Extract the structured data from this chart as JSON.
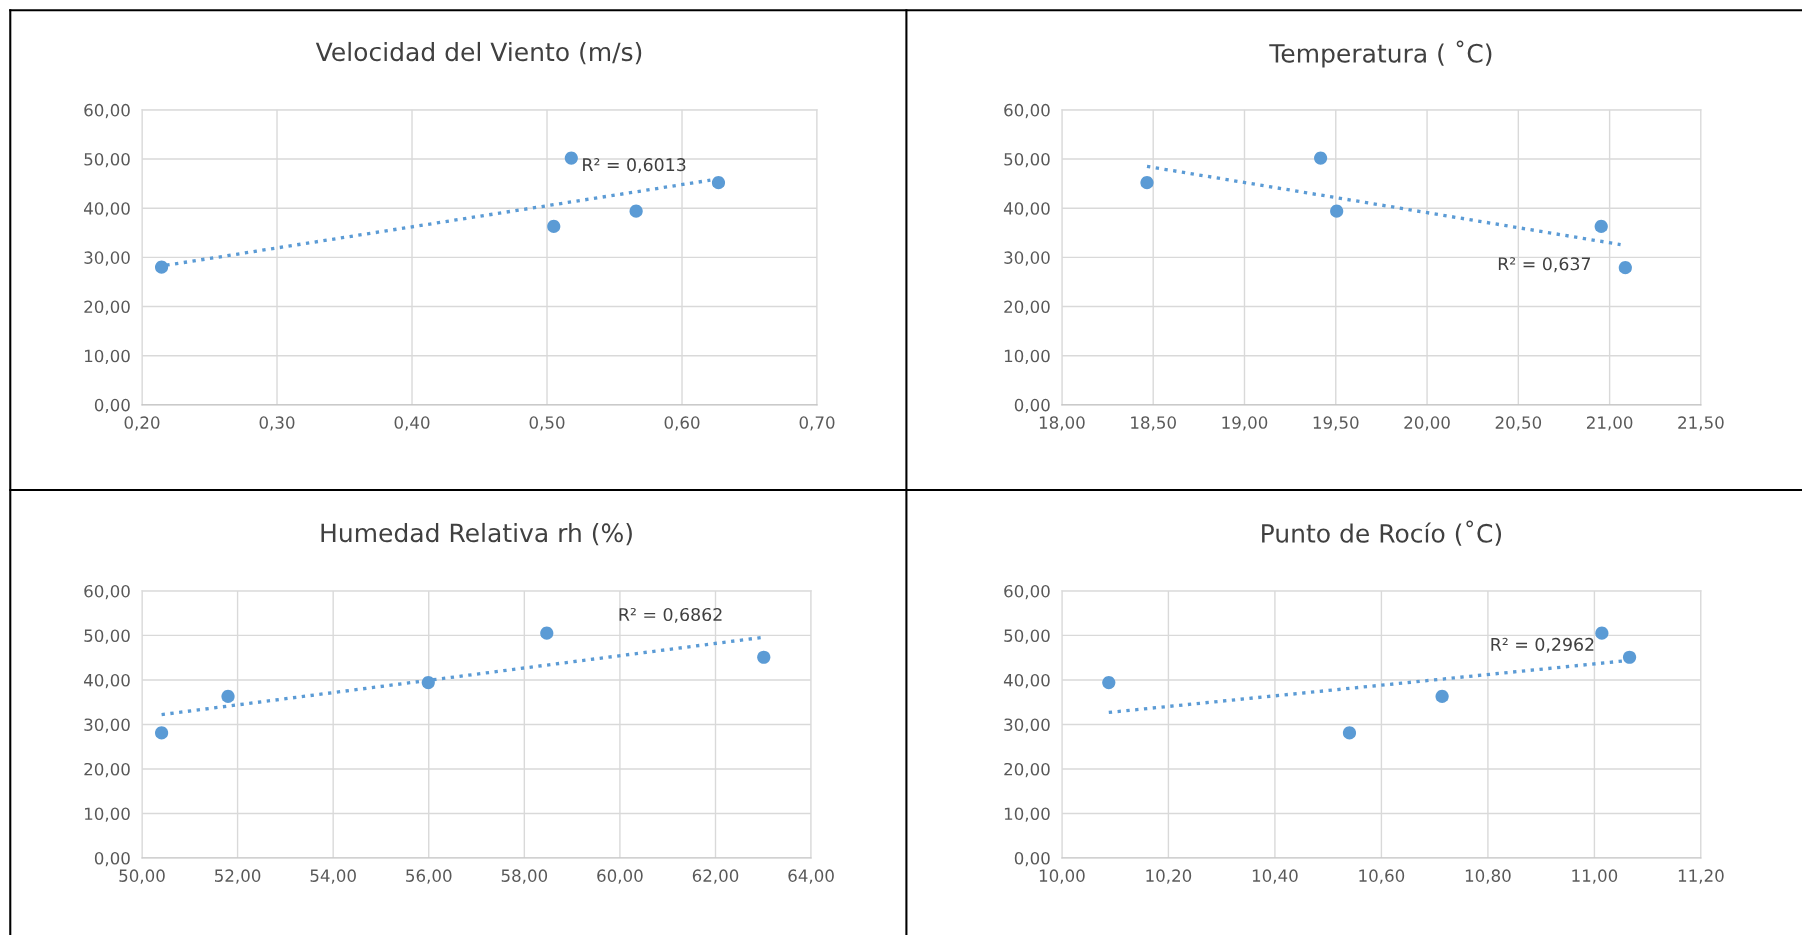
{
  "chart_data": [
    {
      "type": "scatter",
      "title": "Velocidad del Viento (m/s)",
      "grid": true,
      "marker": "circle",
      "xlim": [
        0.2,
        0.7
      ],
      "xticks": [
        {
          "value": 0.2,
          "label": "0,20"
        },
        {
          "value": 0.3,
          "label": "0,30"
        },
        {
          "value": 0.4,
          "label": "0,40"
        },
        {
          "value": 0.5,
          "label": "0,50"
        },
        {
          "value": 0.6,
          "label": "0,60"
        },
        {
          "value": 0.7,
          "label": "0,70"
        }
      ],
      "ylim": [
        0,
        60
      ],
      "yticks": [
        {
          "value": 0,
          "label": "0,00"
        },
        {
          "value": 10,
          "label": "10,00"
        },
        {
          "value": 20,
          "label": "20,00"
        },
        {
          "value": 30,
          "label": "30,00"
        },
        {
          "value": 40,
          "label": "40,00"
        },
        {
          "value": 50,
          "label": "50,00"
        },
        {
          "value": 60,
          "label": "60,00"
        }
      ],
      "series": [
        {
          "color": "#5b9bd5",
          "x": [
            0.2145,
            0.518,
            0.505,
            0.566,
            0.627
          ],
          "values": [
            28.0,
            50.2,
            36.3,
            39.4,
            45.2
          ]
        },
        {
          "type": "line",
          "line_style": "dotted",
          "marker": "none",
          "color": "#5b9bd5",
          "x": [
            0.218,
            0.621
          ],
          "values": [
            28.4,
            45.7
          ]
        }
      ],
      "annotations": [
        "R² = 0,6013"
      ]
    },
    {
      "type": "scatter",
      "title": "Temperatura ( ˚C)",
      "grid": true,
      "marker": "circle",
      "xlim": [
        18.0,
        21.5
      ],
      "xticks": [
        {
          "value": 18.0,
          "label": "18,00"
        },
        {
          "value": 18.5,
          "label": "18,50"
        },
        {
          "value": 19.0,
          "label": "19,00"
        },
        {
          "value": 19.5,
          "label": "19,50"
        },
        {
          "value": 20.0,
          "label": "20,00"
        },
        {
          "value": 20.5,
          "label": "20,50"
        },
        {
          "value": 21.0,
          "label": "21,00"
        },
        {
          "value": 21.5,
          "label": "21,50"
        }
      ],
      "ylim": [
        0,
        60
      ],
      "yticks": [
        {
          "value": 0,
          "label": "0,00"
        },
        {
          "value": 10,
          "label": "10,00"
        },
        {
          "value": 20,
          "label": "20,00"
        },
        {
          "value": 30,
          "label": "30,00"
        },
        {
          "value": 40,
          "label": "40,00"
        },
        {
          "value": 50,
          "label": "50,00"
        },
        {
          "value": 60,
          "label": "60,00"
        }
      ],
      "series": [
        {
          "color": "#5b9bd5",
          "x": [
            18.466,
            19.417,
            19.505,
            20.954,
            21.086
          ],
          "values": [
            45.2,
            50.2,
            39.4,
            36.3,
            27.9
          ]
        },
        {
          "type": "line",
          "line_style": "dotted",
          "marker": "none",
          "color": "#5b9bd5",
          "x": [
            18.466,
            21.06
          ],
          "values": [
            48.5,
            32.6
          ]
        }
      ],
      "annotations": [
        "R² = 0,637"
      ]
    },
    {
      "type": "scatter",
      "title": "Humedad Relativa rh (%)",
      "grid": true,
      "marker": "circle",
      "xlim": [
        50,
        64
      ],
      "xticks": [
        {
          "value": 50,
          "label": "50,00"
        },
        {
          "value": 52,
          "label": "52,00"
        },
        {
          "value": 54,
          "label": "54,00"
        },
        {
          "value": 56,
          "label": "56,00"
        },
        {
          "value": 58,
          "label": "58,00"
        },
        {
          "value": 60,
          "label": "60,00"
        },
        {
          "value": 62,
          "label": "62,00"
        },
        {
          "value": 64,
          "label": "64,00"
        }
      ],
      "ylim": [
        0,
        60
      ],
      "yticks": [
        {
          "value": 0,
          "label": "0,00"
        },
        {
          "value": 10,
          "label": "10,00"
        },
        {
          "value": 20,
          "label": "20,00"
        },
        {
          "value": 30,
          "label": "30,00"
        },
        {
          "value": 40,
          "label": "40,00"
        },
        {
          "value": 50,
          "label": "50,00"
        },
        {
          "value": 60,
          "label": "60,00"
        }
      ],
      "series": [
        {
          "color": "#5b9bd5",
          "x": [
            50.41,
            51.8,
            55.99,
            58.47,
            63.01
          ],
          "values": [
            28.1,
            36.3,
            39.4,
            50.5,
            45.1
          ]
        },
        {
          "type": "line",
          "line_style": "dotted",
          "marker": "none",
          "color": "#5b9bd5",
          "x": [
            50.41,
            63.01
          ],
          "values": [
            32.2,
            49.6
          ]
        }
      ],
      "annotations": [
        "R² = 0,6862"
      ]
    },
    {
      "type": "scatter",
      "title": "Punto de Rocío (˚C)",
      "grid": true,
      "marker": "circle",
      "xlim": [
        10.0,
        11.2
      ],
      "xticks": [
        {
          "value": 10.0,
          "label": "10,00"
        },
        {
          "value": 10.2,
          "label": "10,20"
        },
        {
          "value": 10.4,
          "label": "10,40"
        },
        {
          "value": 10.6,
          "label": "10,60"
        },
        {
          "value": 10.8,
          "label": "10,80"
        },
        {
          "value": 11.0,
          "label": "11,00"
        },
        {
          "value": 11.2,
          "label": "11,20"
        }
      ],
      "ylim": [
        0,
        60
      ],
      "yticks": [
        {
          "value": 0,
          "label": "0,00"
        },
        {
          "value": 10,
          "label": "10,00"
        },
        {
          "value": 20,
          "label": "20,00"
        },
        {
          "value": 30,
          "label": "30,00"
        },
        {
          "value": 40,
          "label": "40,00"
        },
        {
          "value": 50,
          "label": "50,00"
        },
        {
          "value": 60,
          "label": "60,00"
        }
      ],
      "series": [
        {
          "color": "#5b9bd5",
          "x": [
            10.088,
            10.54,
            10.714,
            11.014,
            11.066
          ],
          "values": [
            39.4,
            28.1,
            36.3,
            50.5,
            45.1
          ]
        },
        {
          "type": "line",
          "line_style": "dotted",
          "marker": "none",
          "color": "#5b9bd5",
          "x": [
            10.088,
            11.058
          ],
          "values": [
            32.7,
            44.3
          ]
        }
      ],
      "annotations": [
        "R² = 0,2962"
      ]
    }
  ]
}
